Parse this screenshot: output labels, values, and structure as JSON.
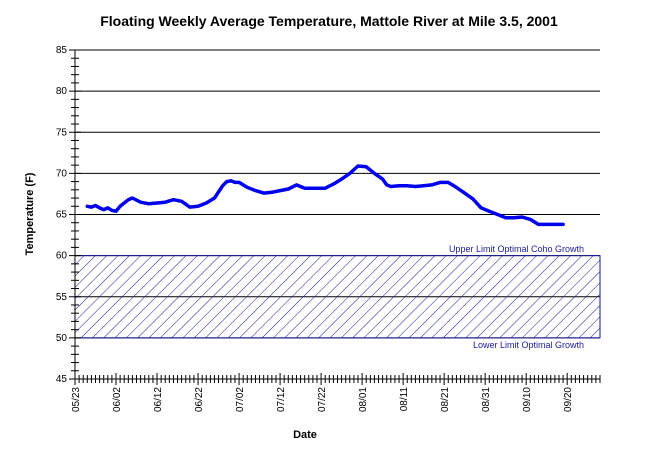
{
  "chart_data": {
    "type": "line",
    "title": "Floating Weekly Average Temperature, Mattole River at Mile 3.5, 2001",
    "xlabel": "Date",
    "ylabel": "Temperature (F)",
    "ylim": [
      45,
      85
    ],
    "y_ticks": [
      "45",
      "50",
      "55",
      "60",
      "65",
      "70",
      "75",
      "80",
      "85"
    ],
    "x_range": [
      "2001-05-23",
      "2001-09-28"
    ],
    "x_ticks": [
      {
        "date": "2001-05-23",
        "label": "05/23"
      },
      {
        "date": "2001-06-02",
        "label": "06/02"
      },
      {
        "date": "2001-06-12",
        "label": "06/12"
      },
      {
        "date": "2001-06-22",
        "label": "06/22"
      },
      {
        "date": "2001-07-02",
        "label": "07/02"
      },
      {
        "date": "2001-07-12",
        "label": "07/12"
      },
      {
        "date": "2001-07-22",
        "label": "07/22"
      },
      {
        "date": "2001-08-01",
        "label": "08/01"
      },
      {
        "date": "2001-08-11",
        "label": "08/11"
      },
      {
        "date": "2001-08-21",
        "label": "08/21"
      },
      {
        "date": "2001-08-31",
        "label": "08/31"
      },
      {
        "date": "2001-09-10",
        "label": "09/10"
      },
      {
        "date": "2001-09-20",
        "label": "09/20"
      }
    ],
    "grid": "horizontal",
    "series_color": "#0000ee",
    "band_color": "#1a1a9a",
    "optimal_band": {
      "lower": 50,
      "upper": 60,
      "upper_label": "Upper Limit Optimal Coho Growth",
      "lower_label": "Lower Limit Optimal Growth"
    },
    "series": [
      {
        "x": [
          "2001-05-26",
          "2001-05-27",
          "2001-05-28",
          "2001-05-29",
          "2001-05-30",
          "2001-05-31",
          "2001-06-01",
          "2001-06-02",
          "2001-06-03",
          "2001-06-04",
          "2001-06-05",
          "2001-06-06",
          "2001-06-08",
          "2001-06-10",
          "2001-06-12",
          "2001-06-14",
          "2001-06-16",
          "2001-06-18",
          "2001-06-20",
          "2001-06-22",
          "2001-06-24",
          "2001-06-26",
          "2001-06-28",
          "2001-06-29",
          "2001-06-30",
          "2001-07-01",
          "2001-07-02",
          "2001-07-04",
          "2001-07-06",
          "2001-07-08",
          "2001-07-10",
          "2001-07-12",
          "2001-07-14",
          "2001-07-16",
          "2001-07-18",
          "2001-07-20",
          "2001-07-21",
          "2001-07-23",
          "2001-07-25",
          "2001-07-27",
          "2001-07-29",
          "2001-07-31",
          "2001-08-02",
          "2001-08-04",
          "2001-08-06",
          "2001-08-07",
          "2001-08-08",
          "2001-08-10",
          "2001-08-12",
          "2001-08-14",
          "2001-08-16",
          "2001-08-18",
          "2001-08-20",
          "2001-08-22",
          "2001-08-24",
          "2001-08-26",
          "2001-08-28",
          "2001-08-30",
          "2001-09-01",
          "2001-09-03",
          "2001-09-05",
          "2001-09-07",
          "2001-09-09",
          "2001-09-11",
          "2001-09-13",
          "2001-09-15",
          "2001-09-17",
          "2001-09-18",
          "2001-09-19"
        ],
        "y": [
          66.0,
          65.9,
          66.1,
          65.8,
          65.6,
          65.8,
          65.5,
          65.4,
          66.0,
          66.4,
          66.8,
          67.0,
          66.5,
          66.3,
          66.4,
          66.5,
          66.8,
          66.6,
          65.9,
          66.0,
          66.4,
          67.0,
          68.5,
          69.0,
          69.1,
          68.9,
          68.9,
          68.3,
          67.9,
          67.6,
          67.7,
          67.9,
          68.1,
          68.6,
          68.2,
          68.2,
          68.2,
          68.2,
          68.7,
          69.3,
          70.0,
          70.9,
          70.8,
          70.0,
          69.3,
          68.6,
          68.4,
          68.5,
          68.5,
          68.4,
          68.5,
          68.6,
          68.9,
          68.9,
          68.3,
          67.6,
          66.9,
          65.8,
          65.4,
          65.0,
          64.6,
          64.6,
          64.7,
          64.4,
          63.8,
          63.8,
          63.8,
          63.8,
          63.8
        ]
      }
    ]
  }
}
